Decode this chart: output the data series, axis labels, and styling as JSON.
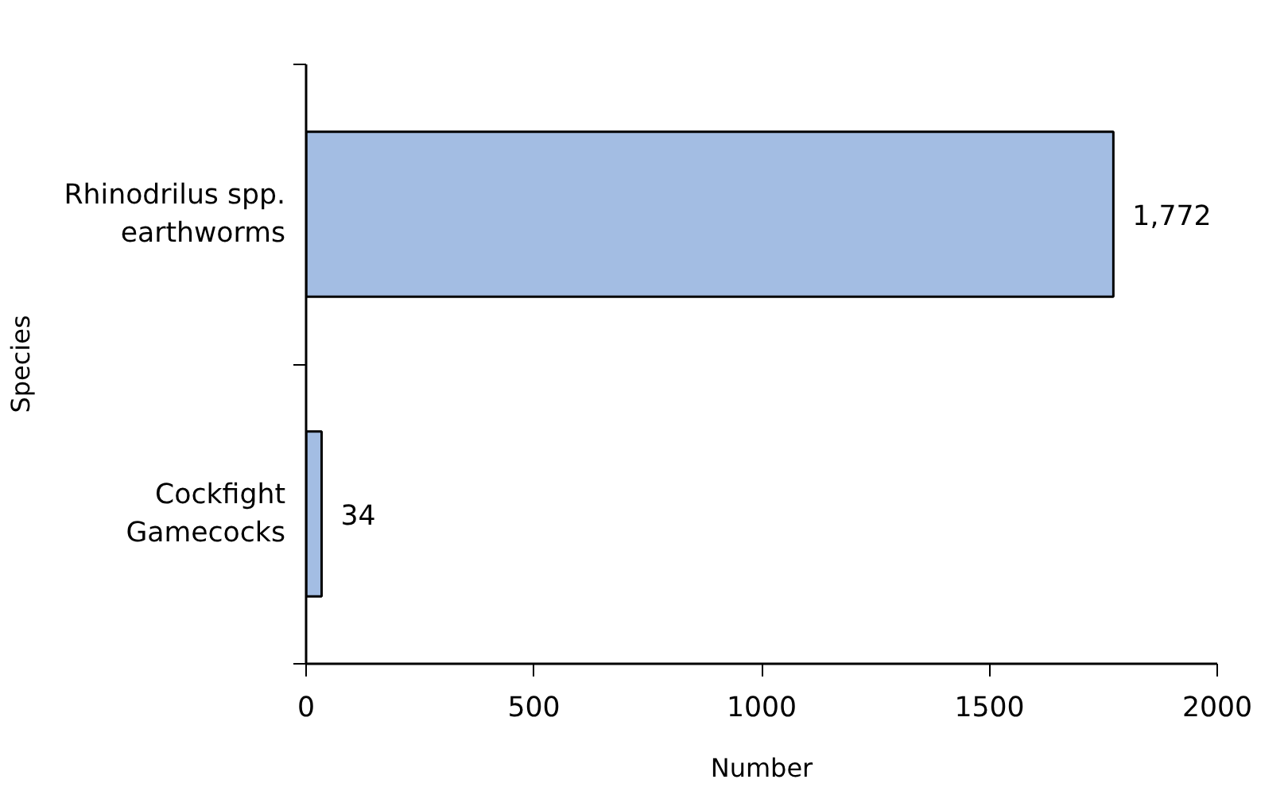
{
  "chart_data": {
    "type": "bar",
    "orientation": "horizontal",
    "categories": [
      "Rhinodrilus spp. earthworms",
      "Cockfight Gamecocks"
    ],
    "values": [
      1772,
      34
    ],
    "value_labels": [
      "1,772",
      "34"
    ],
    "color": "#a3bde3",
    "xlim": [
      0,
      2000
    ],
    "xticks": [
      0,
      500,
      1000,
      1500,
      2000
    ],
    "xlabel": "Number",
    "ylabel": "Species",
    "grid": false
  }
}
